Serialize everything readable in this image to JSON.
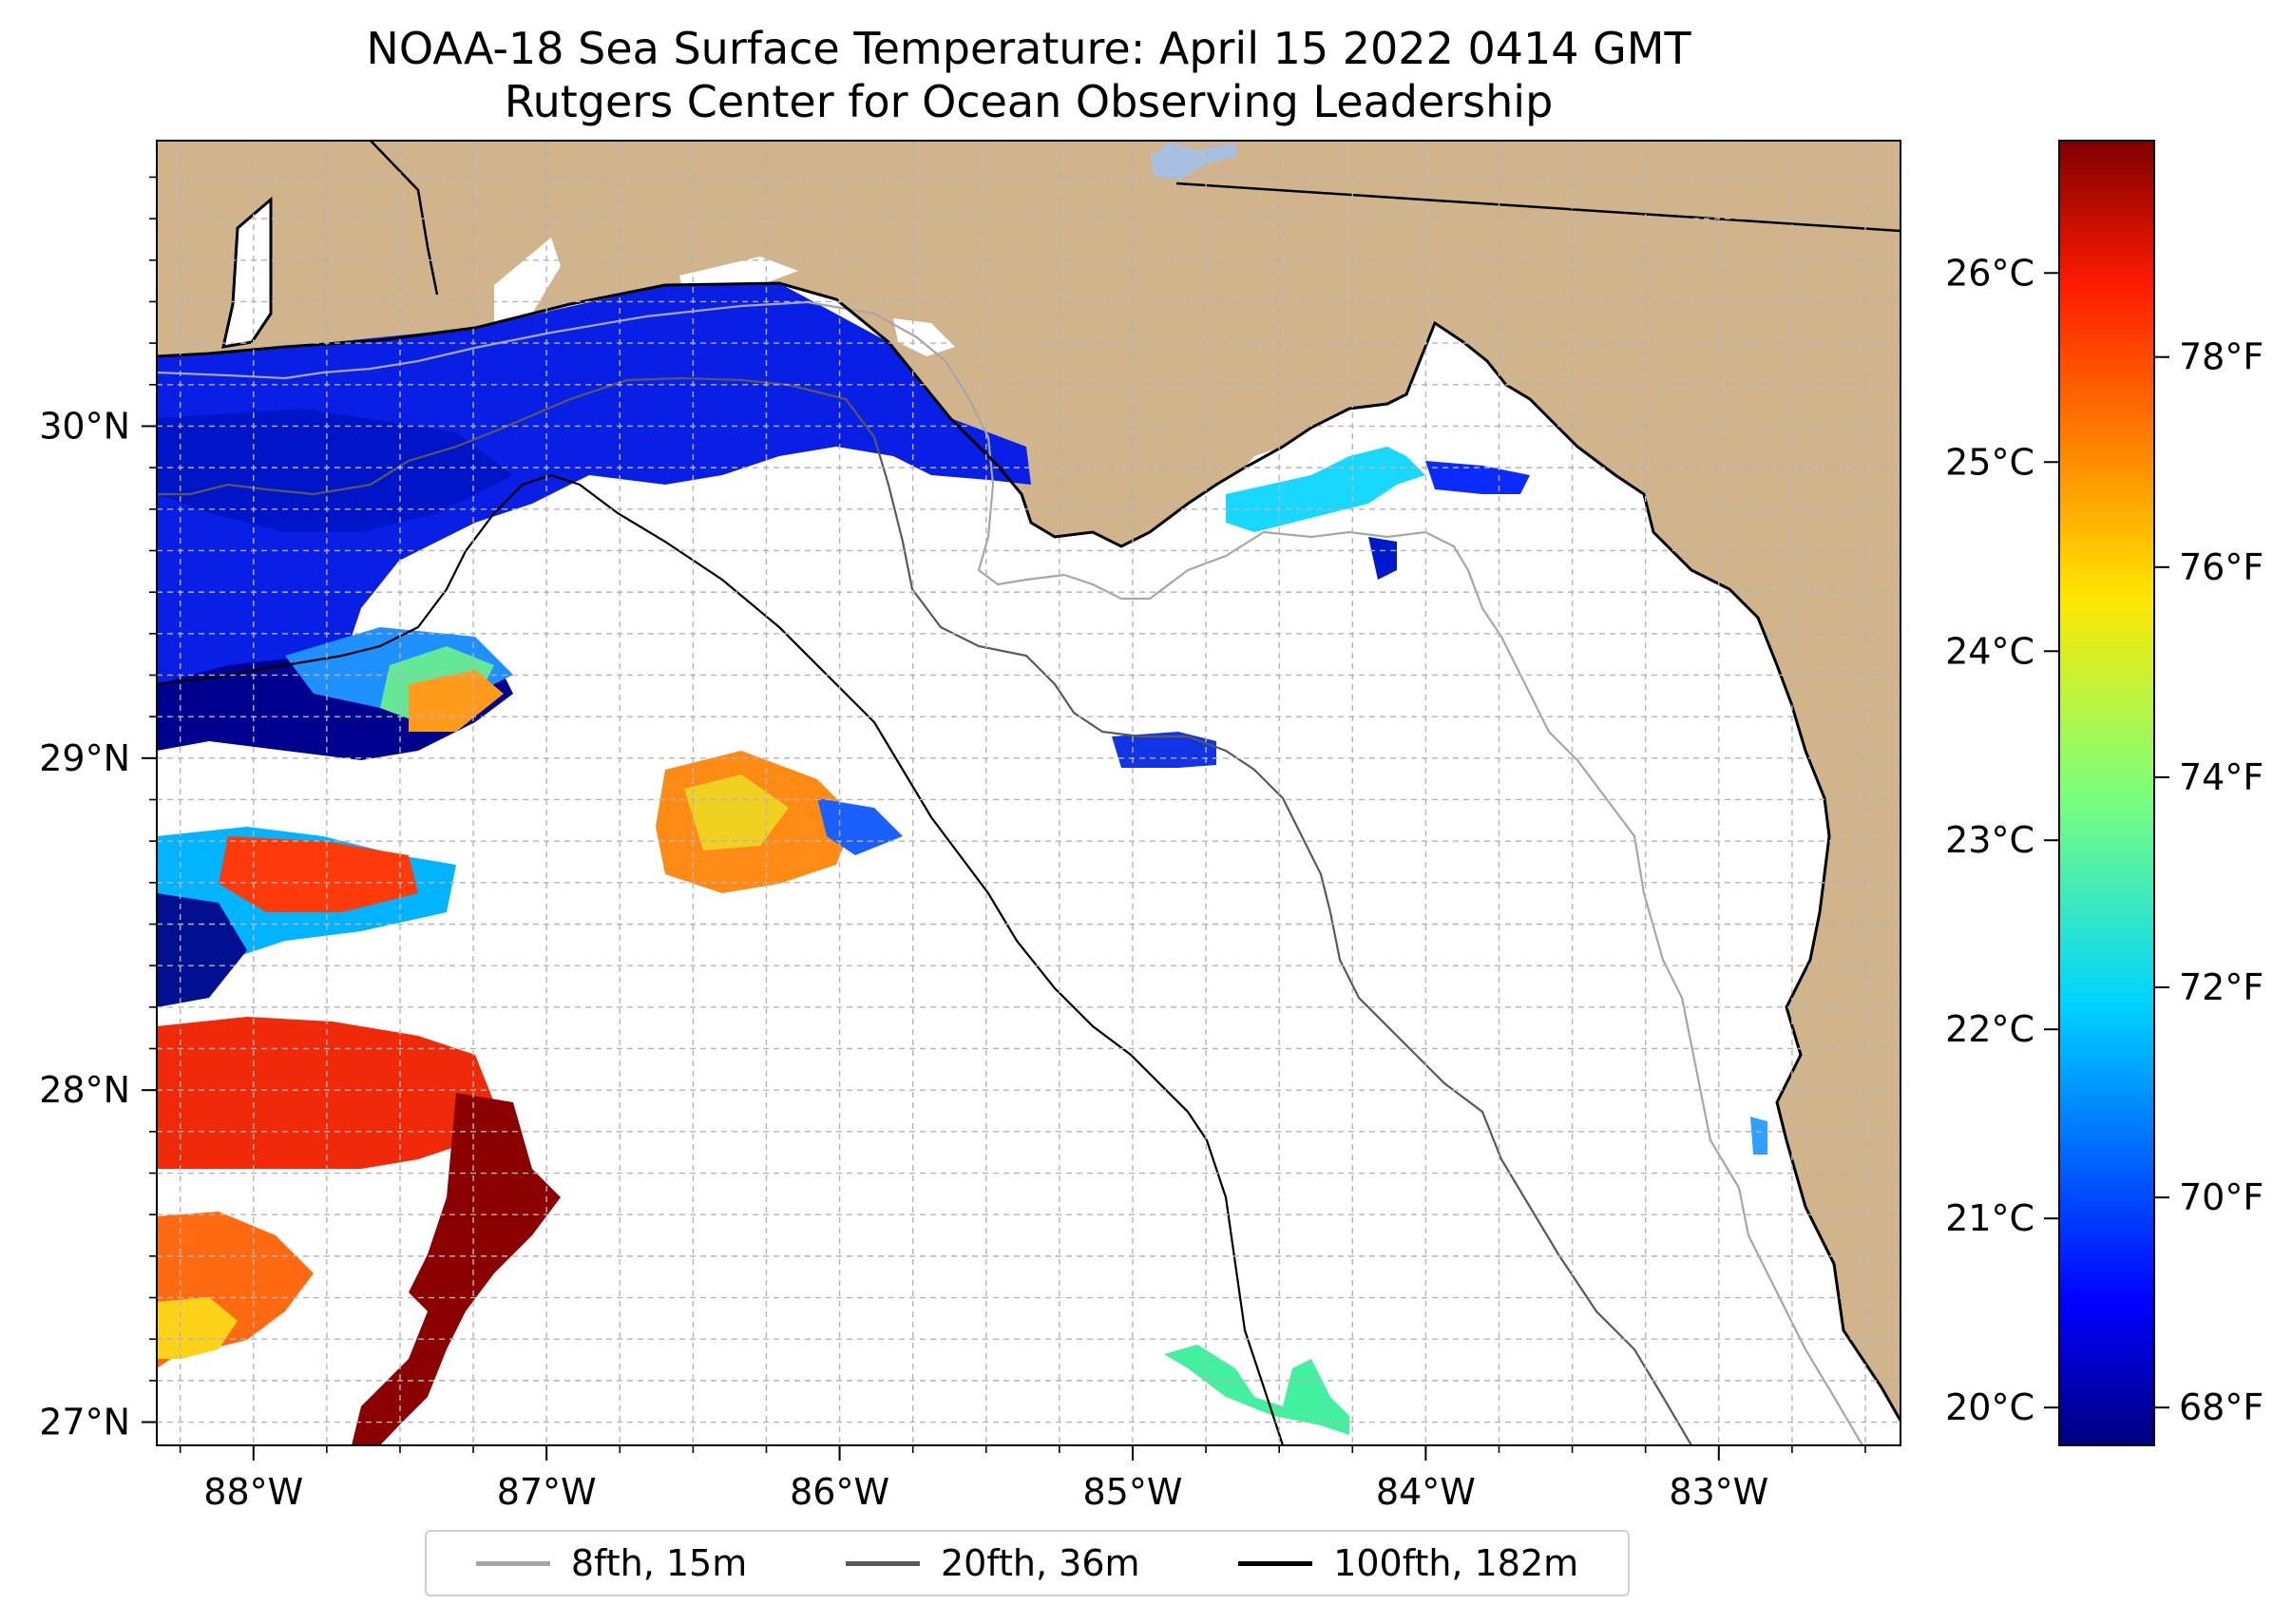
{
  "title": {
    "line1": "NOAA-18 Sea Surface Temperature: April 15 2022 0414 GMT",
    "line2": "Rutgers Center for Ocean Observing Leadership"
  },
  "map": {
    "lon_range": [
      -88.33,
      -82.38
    ],
    "lat_range": [
      26.93,
      30.86
    ],
    "lon_ticks": [
      {
        "value": -88,
        "label": "88°W"
      },
      {
        "value": -87,
        "label": "87°W"
      },
      {
        "value": -86,
        "label": "86°W"
      },
      {
        "value": -85,
        "label": "85°W"
      },
      {
        "value": -84,
        "label": "84°W"
      },
      {
        "value": -83,
        "label": "83°W"
      }
    ],
    "lat_ticks": [
      {
        "value": 27,
        "label": "27°N"
      },
      {
        "value": 28,
        "label": "28°N"
      },
      {
        "value": 29,
        "label": "29°N"
      },
      {
        "value": 30,
        "label": "30°N"
      }
    ],
    "grid": true,
    "land_color": "#d2b48c"
  },
  "colorbar": {
    "colormap": "jet",
    "celsius_range": [
      19.8,
      26.7
    ],
    "celsius_ticks": [
      {
        "value": 20,
        "label": "20°C"
      },
      {
        "value": 21,
        "label": "21°C"
      },
      {
        "value": 22,
        "label": "22°C"
      },
      {
        "value": 23,
        "label": "23°C"
      },
      {
        "value": 24,
        "label": "24°C"
      },
      {
        "value": 25,
        "label": "25°C"
      },
      {
        "value": 26,
        "label": "26°C"
      }
    ],
    "fahrenheit_ticks": [
      {
        "value": 68,
        "label": "68°F"
      },
      {
        "value": 70,
        "label": "70°F"
      },
      {
        "value": 72,
        "label": "72°F"
      },
      {
        "value": 74,
        "label": "74°F"
      },
      {
        "value": 76,
        "label": "76°F"
      },
      {
        "value": 78,
        "label": "78°F"
      }
    ]
  },
  "legend": {
    "entries": [
      {
        "label": "8fth, 15m",
        "color": "#a6a6a6"
      },
      {
        "label": "20fth, 36m",
        "color": "#595959"
      },
      {
        "label": "100fth, 182m",
        "color": "#000000"
      }
    ]
  }
}
